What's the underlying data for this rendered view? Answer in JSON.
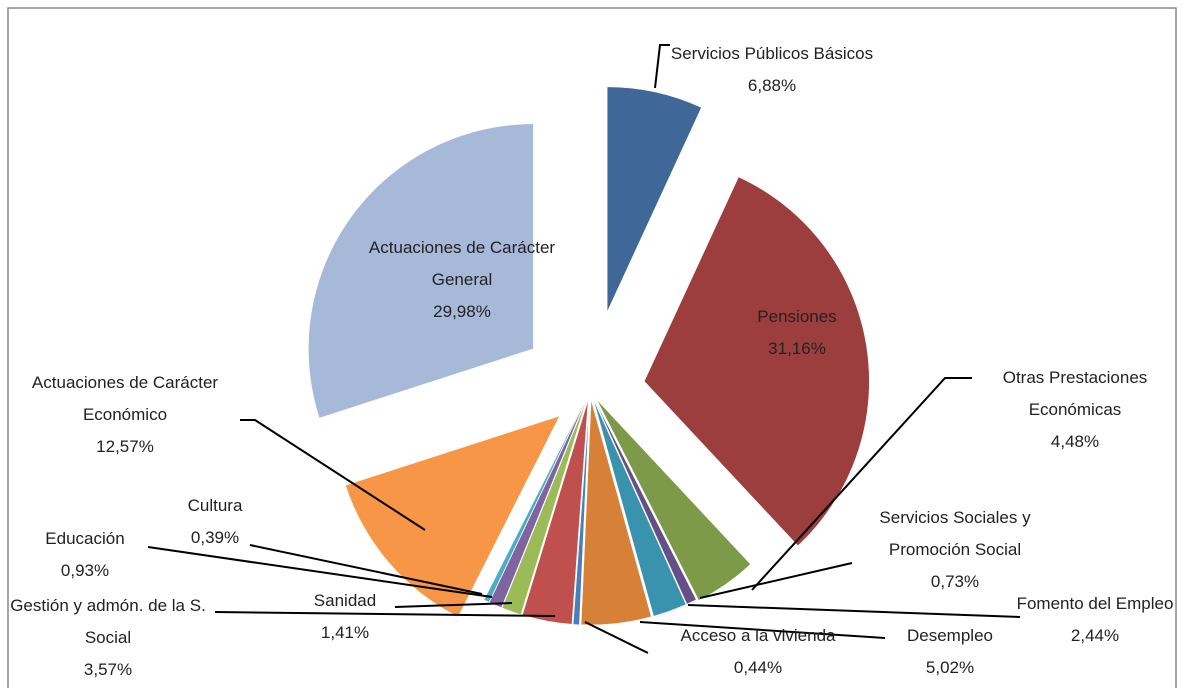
{
  "chart_data": {
    "type": "pie",
    "categories": [
      "Servicios Públicos Básicos",
      "Pensiones",
      "Otras Prestaciones Económicas",
      "Servicios Sociales y Promoción Social",
      "Fomento del Empleo",
      "Desempleo",
      "Acceso a la vivienda",
      "Gestión y admón. de la S. Social",
      "Sanidad",
      "Educación",
      "Cultura",
      "Actuaciones de Carácter Económico",
      "Actuaciones de Carácter General"
    ],
    "values": [
      6.88,
      31.16,
      4.48,
      0.73,
      2.44,
      5.02,
      0.44,
      3.57,
      1.41,
      0.93,
      0.39,
      12.57,
      29.98
    ],
    "value_labels": [
      "6,88%",
      "31,16%",
      "4,48%",
      "0,73%",
      "2,44%",
      "5,02%",
      "0,44%",
      "3,57%",
      "1,41%",
      "0,93%",
      "0,39%",
      "12,57%",
      "29,98%"
    ],
    "colors": [
      "#3f6797",
      "#9b3e3d",
      "#7d9a48",
      "#654f87",
      "#3a93ae",
      "#d78138",
      "#4a7ebb",
      "#c0504d",
      "#9bbb59",
      "#8064a2",
      "#4bacc6",
      "#f79646",
      "#a7b9d9"
    ]
  }
}
